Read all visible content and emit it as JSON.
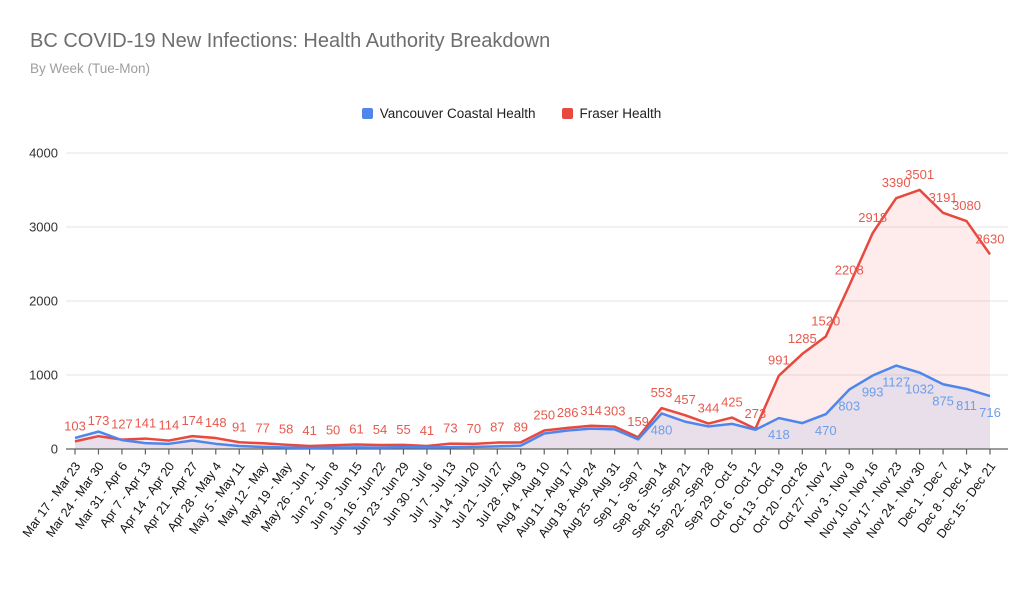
{
  "header": {
    "title": "BC COVID-19 New Infections: Health Authority Breakdown",
    "subtitle": "By Week (Tue-Mon)"
  },
  "legend": [
    {
      "label": "Vancouver Coastal Health",
      "color": "#4f86ec"
    },
    {
      "label": "Fraser Health",
      "color": "#e8493e"
    }
  ],
  "colors": {
    "grid": "#e6e6e6",
    "axis": "#616161",
    "tick_text": "#333333",
    "x_label_text": "#111111",
    "title": "#6e6e6e",
    "subtitle": "#9e9e9e"
  },
  "chart_data": {
    "type": "area",
    "title": "BC COVID-19 New Infections: Health Authority Breakdown",
    "subtitle": "By Week (Tue-Mon)",
    "xlabel": "",
    "ylabel": "",
    "ylim": [
      0,
      4000
    ],
    "y_ticks": [
      0,
      1000,
      2000,
      3000,
      4000
    ],
    "grid": true,
    "legend_position": "top",
    "x_label_rotation": -54,
    "categories": [
      "Mar 17 - Mar 23",
      "Mar 24 - Mar 30",
      "Mar 31 - Apr 6",
      "Apr 7 - Apr 13",
      "Apr 14 - Apr 20",
      "Apr 21 - Apr 27",
      "Apr 28 - May 4",
      "May 5 - May 11",
      "May 12 - May",
      "May 19 - May",
      "May 26 - Jun 1",
      "Jun 2 - Jun 8",
      "Jun 9 - Jun 15",
      "Jun 16 - Jun 22",
      "Jun 23 - Jun 29",
      "Jun 30 - Jul 6",
      "Jul 7 - Jul 13",
      "Jul 14 - Jul 20",
      "Jul 21 - Jul 27",
      "Jul 28 - Aug 3",
      "Aug 4 - Aug 10",
      "Aug 11 - Aug 17",
      "Aug 18 - Aug 24",
      "Aug 25 - Aug 31",
      "Sep 1 - Sep 7",
      "Sep 8 - Sep 14",
      "Sep 15 - Sep 21",
      "Sep 22 - Sep 28",
      "Sep 29 - Oct 5",
      "Oct 6 - Oct 12",
      "Oct 13 - Oct 19",
      "Oct 20 - Oct 26",
      "Oct 27 - Nov 2",
      "Nov 3 - Nov 9",
      "Nov 10 - Nov 16",
      "Nov 17 - Nov 23",
      "Nov 24 - Nov 30",
      "Dec 1 - Dec 7",
      "Dec 8 - Dec 14",
      "Dec 15 - Dec 21"
    ],
    "series": [
      {
        "name": "Vancouver Coastal Health",
        "slug": "vancouver-coastal-health",
        "color": "#4f86ec",
        "label_color": "#6d9eeb",
        "fill": "rgba(79,134,236,0.12)",
        "values": [
          150,
          235,
          120,
          80,
          70,
          115,
          70,
          40,
          28,
          20,
          14,
          18,
          22,
          18,
          25,
          22,
          24,
          28,
          35,
          45,
          210,
          250,
          275,
          265,
          130,
          480,
          370,
          305,
          340,
          260,
          418,
          350,
          470,
          803,
          993,
          1127,
          1032,
          875,
          811,
          716
        ],
        "data_labels": [
          "",
          "",
          "",
          "",
          "",
          "",
          "",
          "",
          "",
          "",
          "",
          "",
          "",
          "",
          "",
          "",
          "",
          "",
          "",
          "",
          "",
          "",
          "",
          "",
          "",
          "480",
          "",
          "",
          "",
          "",
          "418",
          "",
          "470",
          "803",
          "993",
          "1127",
          "1032",
          "875",
          "811",
          "716"
        ]
      },
      {
        "name": "Fraser Health",
        "slug": "fraser-health",
        "color": "#e8493e",
        "label_color": "#e8594e",
        "fill": "rgba(232,73,62,0.10)",
        "values": [
          103,
          173,
          127,
          141,
          114,
          174,
          148,
          91,
          77,
          58,
          41,
          50,
          61,
          54,
          55,
          41,
          73,
          70,
          87,
          89,
          250,
          286,
          314,
          303,
          159,
          553,
          457,
          344,
          425,
          273,
          991,
          1285,
          1520,
          2208,
          2918,
          3390,
          3501,
          3191,
          3080,
          2630
        ],
        "data_labels": [
          "103",
          "173",
          "127",
          "141",
          "114",
          "174",
          "148",
          "91",
          "77",
          "58",
          "41",
          "50",
          "61",
          "54",
          "55",
          "41",
          "73",
          "70",
          "87",
          "89",
          "250",
          "286",
          "314",
          "303",
          "159",
          "553",
          "457",
          "344",
          "425",
          "273",
          "991",
          "1285",
          "1520",
          "2208",
          "2918",
          "3390",
          "3501",
          "3191",
          "3080",
          "2630"
        ]
      }
    ]
  }
}
